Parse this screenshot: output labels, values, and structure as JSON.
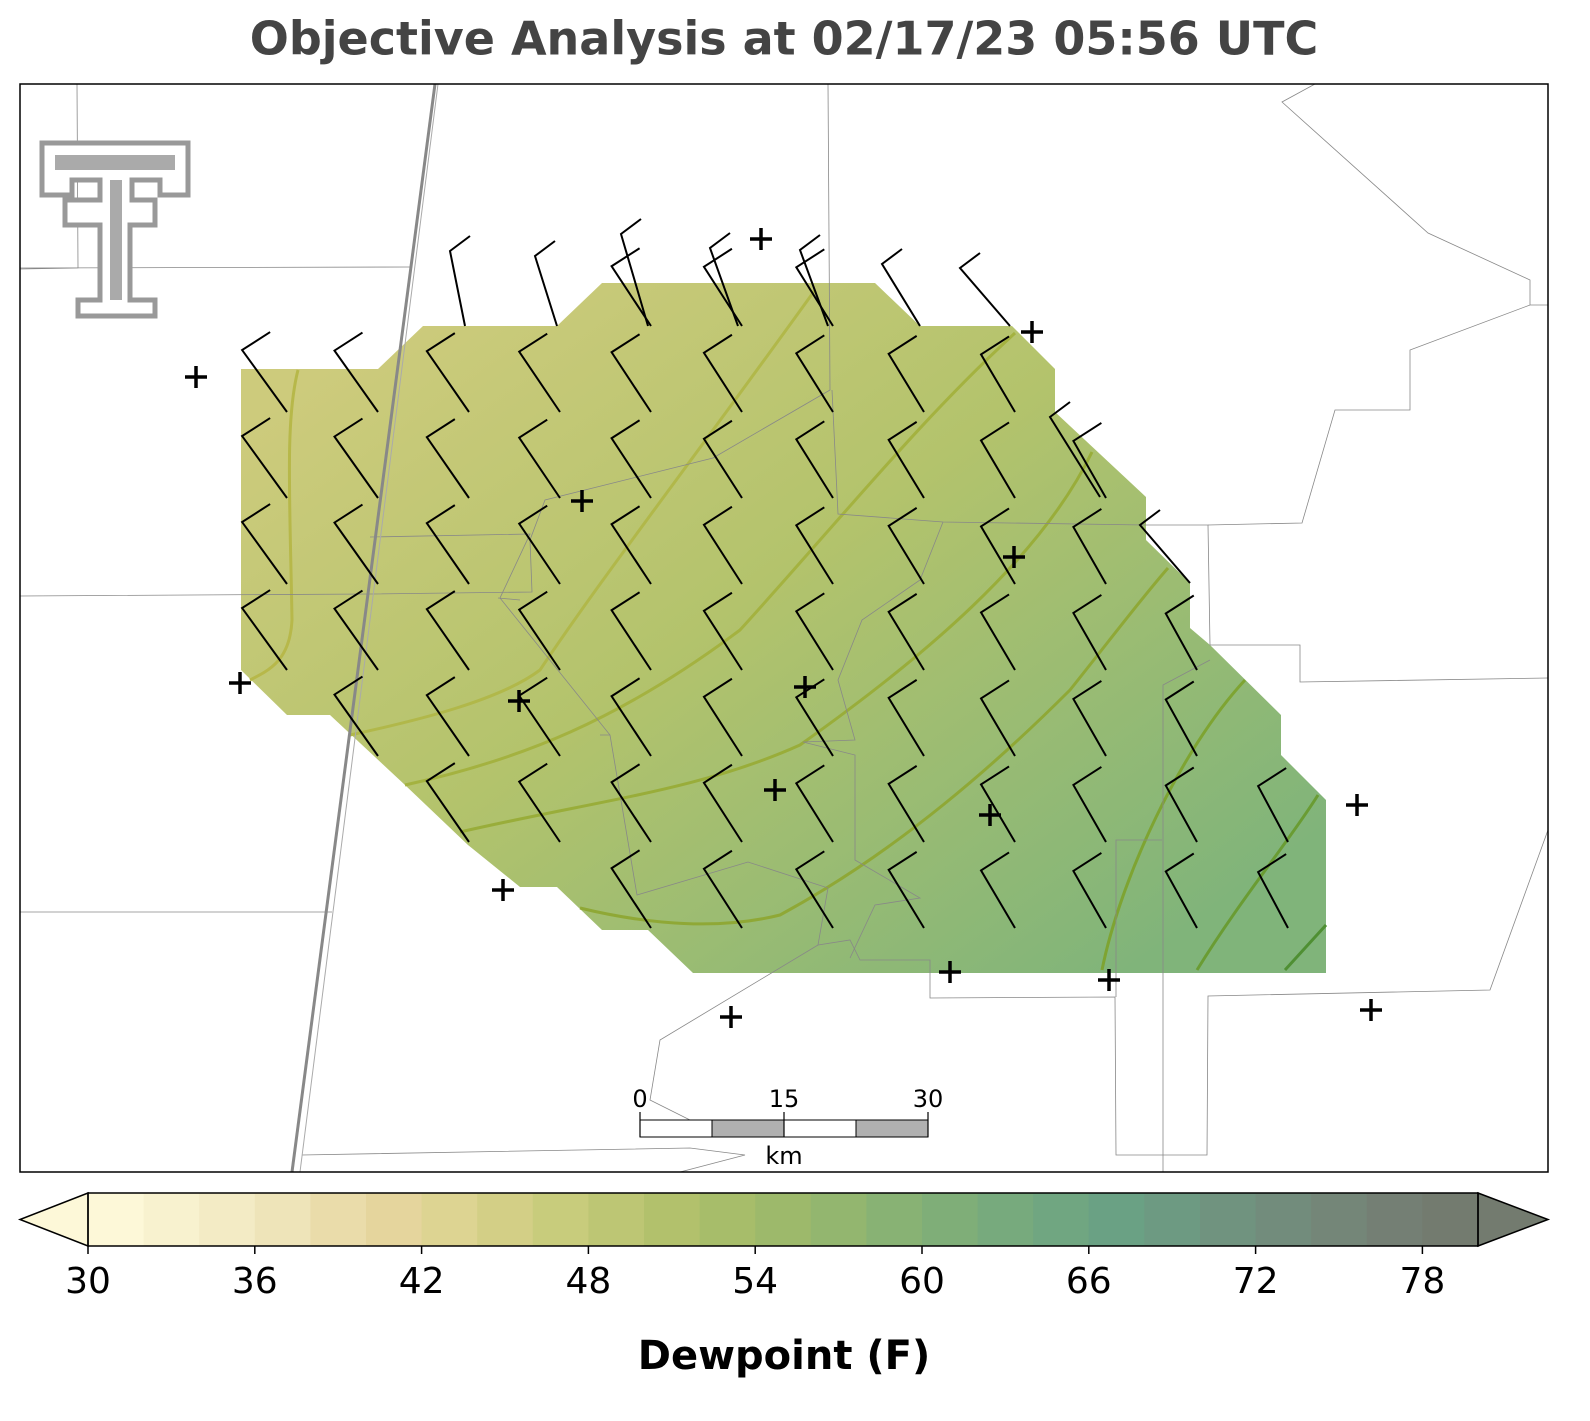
{
  "title": "Objective Analysis at 02/17/23 05:56 UTC",
  "colorbar": {
    "label": "Dewpoint (F)",
    "min": 30,
    "max": 80,
    "step": 2,
    "ticks": [
      30,
      36,
      42,
      48,
      54,
      60,
      66,
      72,
      78
    ],
    "colors": [
      "#fdf8d8",
      "#f8f2cf",
      "#f3ebc5",
      "#eee4b9",
      "#eadcaa",
      "#e5d59d",
      "#ddd492",
      "#d3cf86",
      "#c8cc7c",
      "#bdc674",
      "#b2c16c",
      "#a7bd6a",
      "#9db96b",
      "#93b66f",
      "#88b274",
      "#7fae78",
      "#77aa7d",
      "#70a681",
      "#6aa184",
      "#6d9a82",
      "#70937f",
      "#728c7c",
      "#748678",
      "#747f74",
      "#737b6f"
    ]
  },
  "scalebar": {
    "ticks": [
      0,
      15,
      30
    ],
    "unit": "km"
  }
}
